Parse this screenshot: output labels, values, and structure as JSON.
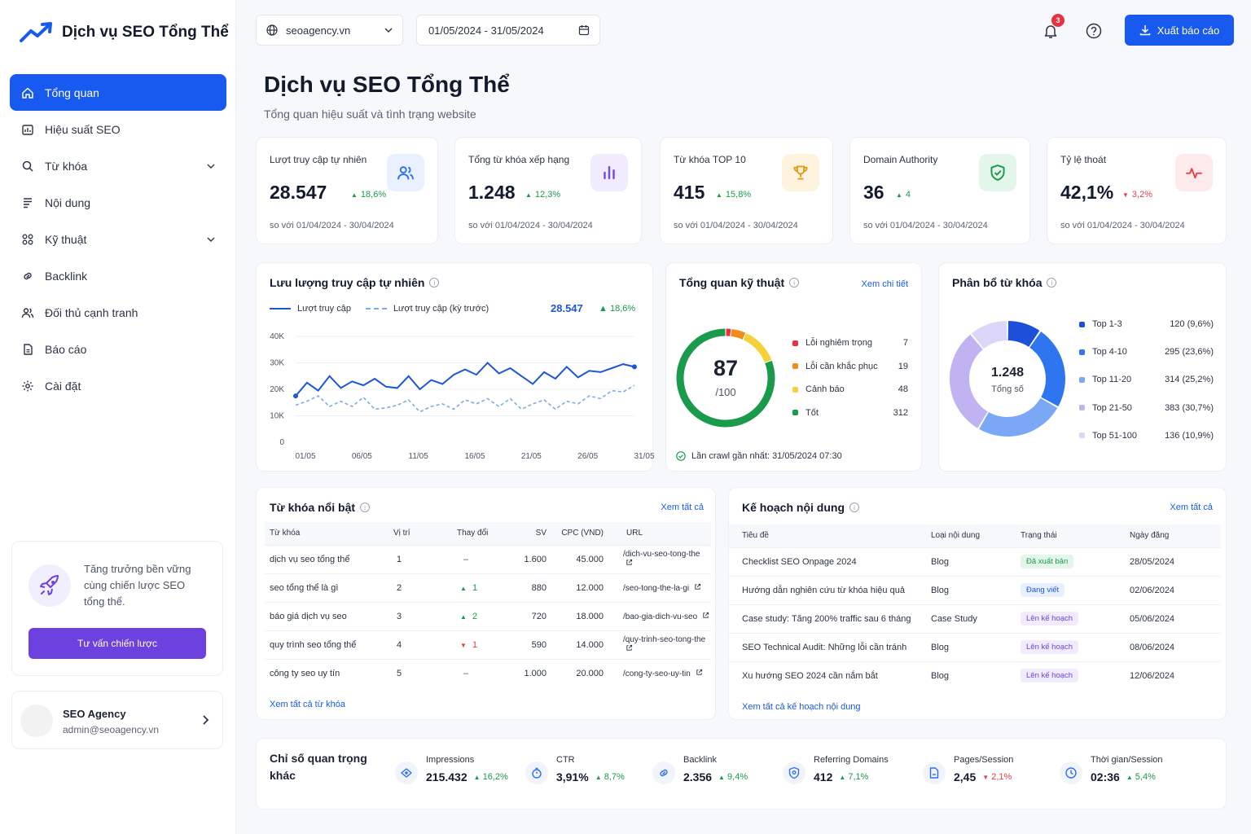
{
  "brand": {
    "name": "Dịch vụ SEO Tổng Thể"
  },
  "nav": [
    {
      "label": "Tổng quan",
      "icon": "home-icon",
      "active": true
    },
    {
      "label": "Hiệu suất SEO",
      "icon": "chart-icon"
    },
    {
      "label": "Từ khóa",
      "icon": "search-icon",
      "expandable": true
    },
    {
      "label": "Nội dung",
      "icon": "document-icon"
    },
    {
      "label": "Kỹ thuật",
      "icon": "settings-tree-icon",
      "expandable": true
    },
    {
      "label": "Backlink",
      "icon": "link-icon"
    },
    {
      "label": "Đối thủ cạnh tranh",
      "icon": "users-icon"
    },
    {
      "label": "Báo cáo",
      "icon": "report-icon"
    },
    {
      "label": "Cài đặt",
      "icon": "gear-icon"
    }
  ],
  "promo": {
    "text": "Tăng trưởng bền vững cùng chiến lược SEO tổng thể.",
    "button": "Tư vấn chiến lược"
  },
  "user": {
    "name": "SEO Agency",
    "email": "admin@seoagency.vn"
  },
  "topbar": {
    "site": "seoagency.vn",
    "date_range": "01/05/2024 - 31/05/2024",
    "notifications": "3",
    "export": "Xuất báo cáo"
  },
  "header": {
    "title": "Dịch vụ SEO Tổng Thể",
    "subtitle": "Tổng quan hiệu suất và tình trạng website"
  },
  "kpis": [
    {
      "label": "Lượt truy cập tự nhiên",
      "value": "28.547",
      "delta": "18,6%",
      "dir": "up",
      "compare": "so với 01/04/2024 - 30/04/2024",
      "icon": "users-icon",
      "color": "#2f6ef2",
      "bg": "#eaf1fe"
    },
    {
      "label": "Tổng từ khóa xếp hạng",
      "value": "1.248",
      "delta": "12,3%",
      "dir": "up",
      "compare": "so với 01/04/2024 - 30/04/2024",
      "icon": "bar-chart-icon",
      "color": "#7a4be0",
      "bg": "#f1ecfd"
    },
    {
      "label": "Từ khóa TOP 10",
      "value": "415",
      "delta": "15,8%",
      "dir": "up",
      "compare": "so với 01/04/2024 - 30/04/2024",
      "icon": "trophy-icon",
      "color": "#e29a13",
      "bg": "#fdf3df"
    },
    {
      "label": "Domain Authority",
      "value": "36",
      "delta": "4",
      "dir": "up",
      "compare": "so với 01/04/2024 - 30/04/2024",
      "icon": "shield-check-icon",
      "color": "#1a9a4b",
      "bg": "#e4f6ea"
    },
    {
      "label": "Tỷ lệ thoát",
      "value": "42,1%",
      "delta": "3,2%",
      "dir": "down",
      "compare": "so với 01/04/2024 - 30/04/2024",
      "icon": "pulse-icon",
      "color": "#e0414b",
      "bg": "#fdeaeb"
    }
  ],
  "traffic": {
    "title": "Lưu lượng truy cập tự nhiên",
    "legend_current": "Lượt truy cập",
    "legend_prev": "Lượt truy cập (kỳ trước)",
    "total": "28.547",
    "delta": "18,6%"
  },
  "chart_data": {
    "type": "line",
    "x": [
      1,
      2,
      3,
      4,
      5,
      6,
      7,
      8,
      9,
      10,
      11,
      12,
      13,
      14,
      15,
      16,
      17,
      18,
      19,
      20,
      21,
      22,
      23,
      24,
      25,
      26,
      27,
      28,
      29,
      30,
      31
    ],
    "x_tick_labels": [
      "01/05",
      "06/05",
      "11/05",
      "16/05",
      "21/05",
      "26/05",
      "31/05"
    ],
    "x_tick_positions": [
      1,
      6,
      11,
      16,
      21,
      26,
      31
    ],
    "ylim": [
      0,
      40000
    ],
    "y_ticks": [
      "0",
      "10K",
      "20K",
      "30K",
      "40K"
    ],
    "series": [
      {
        "name": "Lượt truy cập",
        "color": "#1d56d8",
        "dashed": false,
        "values": [
          17500,
          22500,
          19500,
          25000,
          20500,
          23000,
          21500,
          24000,
          21000,
          20500,
          25000,
          20000,
          23500,
          22000,
          25500,
          27500,
          25500,
          30000,
          26000,
          28000,
          25000,
          22000,
          26500,
          24000,
          28500,
          24500,
          27000,
          26500,
          28000,
          29500,
          28500
        ]
      },
      {
        "name": "Lượt truy cập (kỳ trước)",
        "color": "#7fa9ee",
        "dashed": true,
        "values": [
          14000,
          15500,
          17500,
          13500,
          15500,
          13500,
          17000,
          12500,
          13000,
          14000,
          16000,
          11500,
          13500,
          14500,
          12500,
          16000,
          14500,
          16500,
          13500,
          16500,
          12500,
          14500,
          16000,
          12500,
          15500,
          14500,
          17500,
          16500,
          19500,
          19000,
          21500
        ]
      }
    ]
  },
  "tech": {
    "title": "Tổng quan kỹ thuật",
    "link": "Xem chi tiết",
    "score": "87",
    "score_max": "/100",
    "items": [
      {
        "label": "Lỗi nghiêm trọng",
        "value": "7",
        "color": "#e8323f"
      },
      {
        "label": "Lỗi cần khắc phục",
        "value": "19",
        "color": "#f08c1a"
      },
      {
        "label": "Cảnh báo",
        "value": "48",
        "color": "#f6d23a"
      },
      {
        "label": "Tốt",
        "value": "312",
        "color": "#1a9a4b"
      }
    ],
    "crawl": "Lần crawl gần nhất: 31/05/2024 07:30"
  },
  "distribution": {
    "title": "Phân bổ từ khóa",
    "total": "1.248",
    "total_label": "Tổng số",
    "items": [
      {
        "label": "Top 1-3",
        "value": "120 (9,6%)",
        "share": 9.6,
        "color": "#1d4fd8"
      },
      {
        "label": "Top 4-10",
        "value": "295 (23,6%)",
        "share": 23.6,
        "color": "#2f75f0"
      },
      {
        "label": "Top 11-20",
        "value": "314 (25,2%)",
        "share": 25.2,
        "color": "#7aa8f5"
      },
      {
        "label": "Top 21-50",
        "value": "383 (30,7%)",
        "share": 30.7,
        "color": "#bfb3f2"
      },
      {
        "label": "Top 51-100",
        "value": "136 (10,9%)",
        "share": 10.9,
        "color": "#dcd6f8"
      }
    ]
  },
  "keywords": {
    "title": "Từ khóa nổi bật",
    "link": "Xem tất cả",
    "columns": [
      "Từ khóa",
      "Vị trí",
      "Thay đổi",
      "SV",
      "CPC (VND)",
      "URL"
    ],
    "rows": [
      {
        "kw": "dịch vụ seo tổng thể",
        "pos": "1",
        "chg": "–",
        "dir": "none",
        "sv": "1.600",
        "cpc": "45.000",
        "url": "/dich-vu-seo-tong-the"
      },
      {
        "kw": "seo tổng thể là gì",
        "pos": "2",
        "chg": "1",
        "dir": "up",
        "sv": "880",
        "cpc": "12.000",
        "url": "/seo-tong-the-la-gi"
      },
      {
        "kw": "báo giá dịch vụ seo",
        "pos": "3",
        "chg": "2",
        "dir": "up",
        "sv": "720",
        "cpc": "18.000",
        "url": "/bao-gia-dich-vu-seo"
      },
      {
        "kw": "quy trình seo tổng thể",
        "pos": "4",
        "chg": "1",
        "dir": "down",
        "sv": "590",
        "cpc": "14.000",
        "url": "/quy-trinh-seo-tong-the"
      },
      {
        "kw": "công ty seo uy tín",
        "pos": "5",
        "chg": "–",
        "dir": "none",
        "sv": "1.000",
        "cpc": "20.000",
        "url": "/cong-ty-seo-uy-tin"
      }
    ],
    "footer": "Xem tất cả từ khóa"
  },
  "content_plan": {
    "title": "Kế hoạch nội dung",
    "link": "Xem tất cả",
    "columns": [
      "Tiêu đề",
      "Loại nội dung",
      "Trạng thái",
      "Ngày đăng"
    ],
    "rows": [
      {
        "title": "Checklist SEO Onpage 2024",
        "type": "Blog",
        "status": "Đã xuất bản",
        "status_color": "#1a9a4b",
        "status_bg": "#e4f6ea",
        "date": "28/05/2024"
      },
      {
        "title": "Hướng dẫn nghiên cứu từ khóa hiệu quả",
        "type": "Blog",
        "status": "Đang viết",
        "status_color": "#1859f0",
        "status_bg": "#e8effe",
        "date": "02/06/2024"
      },
      {
        "title": "Case study: Tăng 200% traffic sau 6 tháng",
        "type": "Case Study",
        "status": "Lên kế hoạch",
        "status_color": "#6d41e0",
        "status_bg": "#f0ecfd",
        "date": "05/06/2024"
      },
      {
        "title": "SEO Technical Audit: Những lỗi cần tránh",
        "type": "Blog",
        "status": "Lên kế hoạch",
        "status_color": "#6d41e0",
        "status_bg": "#f0ecfd",
        "date": "08/06/2024"
      },
      {
        "title": "Xu hướng SEO 2024 cần nắm bắt",
        "type": "Blog",
        "status": "Lên kế hoạch",
        "status_color": "#6d41e0",
        "status_bg": "#f0ecfd",
        "date": "12/06/2024"
      }
    ],
    "footer": "Xem tất cả kế hoạch nội dung"
  },
  "metrics": {
    "title": "Chỉ số quan trọng khác",
    "items": [
      {
        "label": "Impressions",
        "value": "215.432",
        "delta": "16,2%",
        "dir": "up",
        "icon": "eye-icon"
      },
      {
        "label": "CTR",
        "value": "3,91%",
        "delta": "8,7%",
        "dir": "up",
        "icon": "timer-icon"
      },
      {
        "label": "Backlink",
        "value": "2.356",
        "delta": "9,4%",
        "dir": "up",
        "icon": "link-icon"
      },
      {
        "label": "Referring Domains",
        "value": "412",
        "delta": "7,1%",
        "dir": "up",
        "icon": "shield-icon"
      },
      {
        "label": "Pages/Session",
        "value": "2,45",
        "delta": "2,1%",
        "dir": "down",
        "icon": "pages-icon"
      },
      {
        "label": "Thời gian/Session",
        "value": "02:36",
        "delta": "5,4%",
        "dir": "up",
        "icon": "clock-icon"
      }
    ]
  }
}
